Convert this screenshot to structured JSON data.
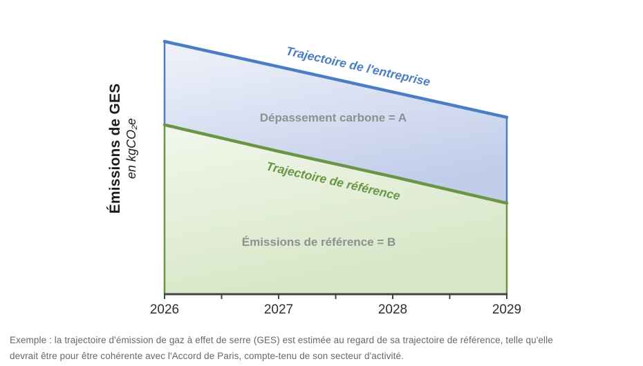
{
  "chart_data": {
    "type": "area",
    "x": [
      2026,
      2027,
      2028,
      2029
    ],
    "x_tick_labels": [
      "2026",
      "2027",
      "2028",
      "2029"
    ],
    "ylim": [
      0,
      100
    ],
    "y_axis_numeric": false,
    "grid": false,
    "legend_position": "labels-on-lines",
    "ylabel_line1": "Émissions de GES",
    "ylabel_line2": "en kgCO₂e",
    "series": [
      {
        "name": "Trajectoire de l'entreprise",
        "values": [
          100,
          90,
          80,
          70
        ],
        "color": "#4a7dc4",
        "fill_top": "#f0f3fa",
        "fill_bottom": "#c2cdea"
      },
      {
        "name": "Trajectoire de référence",
        "values": [
          67,
          56.5,
          46.5,
          36
        ],
        "color": "#699544",
        "fill_top": "#f2f7eb",
        "fill_bottom": "#d7e6c6"
      }
    ],
    "annotations": [
      {
        "text": "Dépassement carbone = A"
      },
      {
        "text": "Émissions de référence = B"
      }
    ],
    "axis_color": "#3f4642",
    "area_label_color": "#8b9190",
    "tick_label_color": "#2e2e2e"
  },
  "caption": {
    "line1": "Exemple : la trajectoire d'émission de gaz à effet de serre (GES) est estimée au regard de sa trajectoire de référence, telle qu'elle",
    "line2": "devrait être pour être cohérente avec l'Accord de Paris, compte-tenu de son secteur d'activité.",
    "color": "#5f6a72"
  }
}
